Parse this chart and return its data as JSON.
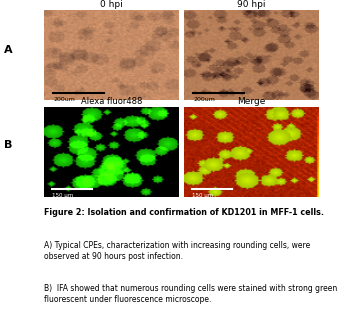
{
  "title_A_left": "0 hpi",
  "title_A_right": "90 hpi",
  "title_B_left": "Alexa fluor488",
  "title_B_right": "Merge",
  "label_A": "A",
  "label_B": "B",
  "scalebar_A": "200um",
  "scalebar_B": "150 μm",
  "figure_caption_bold": "Figure 2: Isolation and confirmation of KD1201 in MFF-1 cells.",
  "caption_A": "A) Typical CPEs, characterization with increasing rounding cells, were\nobserved at 90 hours post infection.",
  "caption_B": "B)  IFA showed that numerous rounding cells were stained with strong green\nfluorescent under fluorescence microscope.",
  "bg_color": "#ffffff",
  "panel_A_left_bg": "#c8956a",
  "panel_A_right_bg": "#b8845a",
  "panel_B_left_bg": "#000000",
  "panel_B_right_bg": "#8B2000"
}
